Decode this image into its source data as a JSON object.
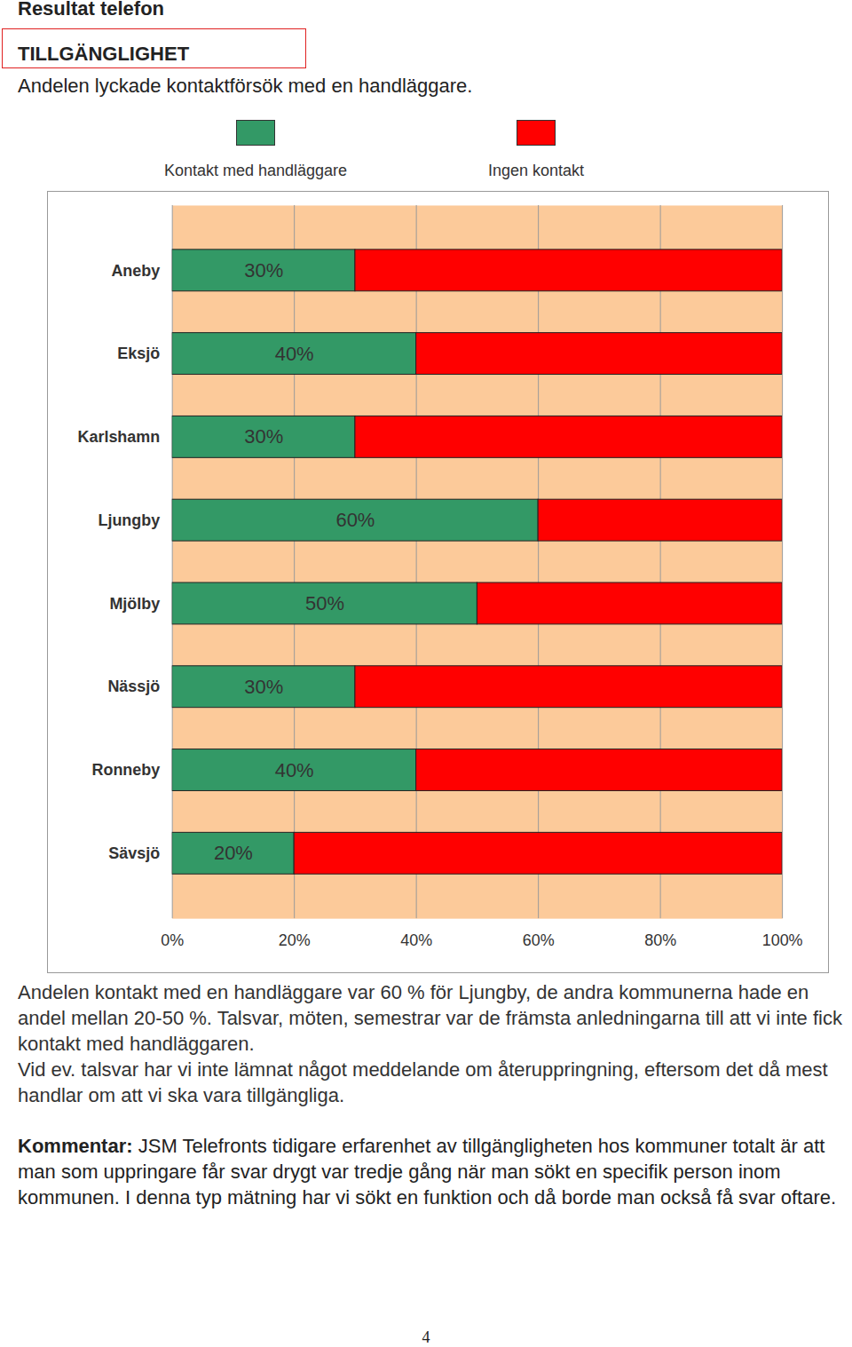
{
  "header": "Resultat telefon",
  "section": "TILLGÄNGLIGHET",
  "subtitle": "Andelen lyckade kontaktförsök med en handläggare.",
  "chart_data": {
    "type": "bar",
    "orientation": "horizontal",
    "stacked": true,
    "grid": true,
    "legend": "top",
    "data_labels": true,
    "categories": [
      "Aneby",
      "Eksjö",
      "Karlshamn",
      "Ljungby",
      "Mjölby",
      "Nässjö",
      "Ronneby",
      "Sävsjö"
    ],
    "series": [
      {
        "name": "Kontakt med handläggare",
        "color": "#339966",
        "values": [
          30,
          40,
          30,
          60,
          50,
          30,
          40,
          20
        ],
        "value_labels": [
          "30%",
          "40%",
          "30%",
          "60%",
          "50%",
          "30%",
          "40%",
          "20%"
        ]
      },
      {
        "name": "Ingen kontakt",
        "color": "#ff0000",
        "values": [
          70,
          60,
          70,
          40,
          50,
          70,
          60,
          80
        ]
      }
    ],
    "xlim": [
      0,
      100
    ],
    "xticks": [
      {
        "value": 0,
        "label": "0%"
      },
      {
        "value": 20,
        "label": "20%"
      },
      {
        "value": 40,
        "label": "40%"
      },
      {
        "value": 60,
        "label": "60%"
      },
      {
        "value": 80,
        "label": "80%"
      },
      {
        "value": 100,
        "label": "100%"
      }
    ]
  },
  "paragraphs": [
    "Andelen kontakt med en handläggare var 60 % för Ljungby, de andra kommunerna hade en andel mellan 20-50 %. Talsvar, möten, semestrar var de främsta anledningarna till att vi inte fick kontakt med handläggaren.",
    "Vid ev. talsvar har vi inte lämnat något meddelande om återuppringning, eftersom det då mest handlar om att vi ska vara tillgängliga."
  ],
  "comment": {
    "label": "Kommentar:",
    "text": "JSM Telefronts tidigare erfarenhet av tillgängligheten hos kommuner totalt är att man som uppringare får svar drygt var tredje gång när man sökt en specifik person inom kommunen. I denna typ mätning har vi sökt en funktion och då borde man också få svar oftare."
  },
  "page_number": "4"
}
